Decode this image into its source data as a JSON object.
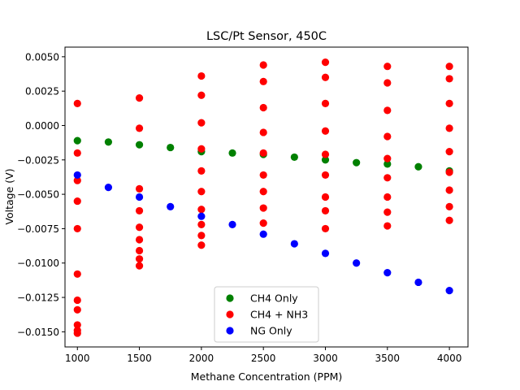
{
  "chart_data": {
    "type": "scatter",
    "title": "LSC/Pt Sensor, 450C",
    "xlabel": "Methane Concentration (PPM)",
    "ylabel": "Voltage (V)",
    "xlim": [
      900,
      4150
    ],
    "ylim": [
      -0.0161,
      0.0057
    ],
    "x_ticks": [
      1000,
      1500,
      2000,
      2500,
      3000,
      3500,
      4000
    ],
    "y_ticks": [
      0.005,
      0.0025,
      0.0,
      -0.0025,
      -0.005,
      -0.0075,
      -0.01,
      -0.0125,
      -0.015
    ],
    "x_tick_labels": [
      "1000",
      "1500",
      "2000",
      "2500",
      "3000",
      "3500",
      "4000"
    ],
    "y_tick_labels": [
      "0.0050",
      "0.0025",
      "0.0000",
      "−0.0025",
      "−0.0050",
      "−0.0075",
      "−0.0100",
      "−0.0125",
      "−0.0150"
    ],
    "grid": false,
    "legend_position": "lower-center",
    "series": [
      {
        "name": "CH4 Only",
        "color": "#008000",
        "points": [
          [
            1000,
            -0.0011
          ],
          [
            1250,
            -0.0012
          ],
          [
            1500,
            -0.0014
          ],
          [
            1750,
            -0.0016
          ],
          [
            2000,
            -0.0019
          ],
          [
            2250,
            -0.002
          ],
          [
            2500,
            -0.0021
          ],
          [
            2750,
            -0.0023
          ],
          [
            3000,
            -0.0025
          ],
          [
            3250,
            -0.0027
          ],
          [
            3500,
            -0.0028
          ],
          [
            3750,
            -0.003
          ],
          [
            4000,
            -0.0033
          ]
        ]
      },
      {
        "name": "CH4 + NH3",
        "color": "#ff0000",
        "points": [
          [
            1000,
            0.0016
          ],
          [
            1000,
            -0.002
          ],
          [
            1000,
            -0.004
          ],
          [
            1000,
            -0.0055
          ],
          [
            1000,
            -0.0075
          ],
          [
            1000,
            -0.0108
          ],
          [
            1000,
            -0.0127
          ],
          [
            1000,
            -0.0134
          ],
          [
            1000,
            -0.0145
          ],
          [
            1000,
            -0.0149
          ],
          [
            1000,
            -0.0151
          ],
          [
            1500,
            0.002
          ],
          [
            1500,
            -0.0002
          ],
          [
            1500,
            -0.0046
          ],
          [
            1500,
            -0.0062
          ],
          [
            1500,
            -0.0074
          ],
          [
            1500,
            -0.0083
          ],
          [
            1500,
            -0.0091
          ],
          [
            1500,
            -0.0097
          ],
          [
            1500,
            -0.0102
          ],
          [
            2000,
            0.0036
          ],
          [
            2000,
            0.0022
          ],
          [
            2000,
            0.0002
          ],
          [
            2000,
            -0.0017
          ],
          [
            2000,
            -0.0033
          ],
          [
            2000,
            -0.0048
          ],
          [
            2000,
            -0.0061
          ],
          [
            2000,
            -0.0072
          ],
          [
            2000,
            -0.008
          ],
          [
            2000,
            -0.0087
          ],
          [
            2500,
            0.0044
          ],
          [
            2500,
            0.0032
          ],
          [
            2500,
            0.0013
          ],
          [
            2500,
            -0.0005
          ],
          [
            2500,
            -0.002
          ],
          [
            2500,
            -0.0036
          ],
          [
            2500,
            -0.0048
          ],
          [
            2500,
            -0.006
          ],
          [
            2500,
            -0.0071
          ],
          [
            3000,
            0.0046
          ],
          [
            3000,
            0.0035
          ],
          [
            3000,
            0.0016
          ],
          [
            3000,
            -0.0004
          ],
          [
            3000,
            -0.0021
          ],
          [
            3000,
            -0.0036
          ],
          [
            3000,
            -0.0052
          ],
          [
            3000,
            -0.0062
          ],
          [
            3000,
            -0.0075
          ],
          [
            3500,
            0.0043
          ],
          [
            3500,
            0.0031
          ],
          [
            3500,
            0.0011
          ],
          [
            3500,
            -0.0008
          ],
          [
            3500,
            -0.0024
          ],
          [
            3500,
            -0.0038
          ],
          [
            3500,
            -0.0052
          ],
          [
            3500,
            -0.0063
          ],
          [
            3500,
            -0.0073
          ],
          [
            4000,
            0.0043
          ],
          [
            4000,
            0.0034
          ],
          [
            4000,
            0.0016
          ],
          [
            4000,
            -0.0002
          ],
          [
            4000,
            -0.0019
          ],
          [
            4000,
            -0.0034
          ],
          [
            4000,
            -0.0047
          ],
          [
            4000,
            -0.0059
          ],
          [
            4000,
            -0.0069
          ]
        ]
      },
      {
        "name": "NG Only",
        "color": "#0000ff",
        "points": [
          [
            1000,
            -0.0036
          ],
          [
            1250,
            -0.0045
          ],
          [
            1500,
            -0.0052
          ],
          [
            1750,
            -0.0059
          ],
          [
            2000,
            -0.0066
          ],
          [
            2250,
            -0.0072
          ],
          [
            2500,
            -0.0079
          ],
          [
            2750,
            -0.0086
          ],
          [
            3000,
            -0.0093
          ],
          [
            3250,
            -0.01
          ],
          [
            3500,
            -0.0107
          ],
          [
            3750,
            -0.0114
          ],
          [
            4000,
            -0.012
          ]
        ]
      }
    ]
  }
}
